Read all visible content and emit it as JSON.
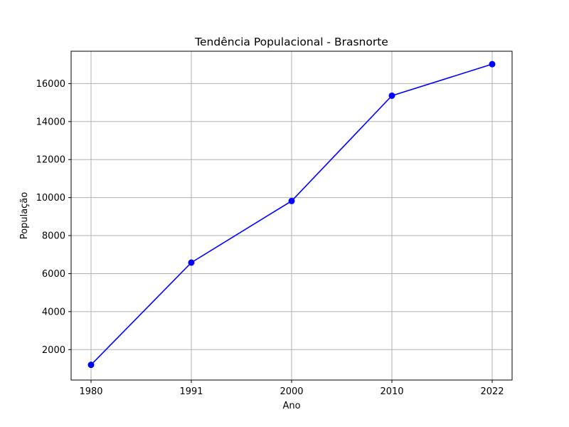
{
  "chart_data": {
    "type": "line",
    "title": "Tendência Populacional - Brasnorte",
    "xlabel": "Ano",
    "ylabel": "População",
    "categories": [
      "1980",
      "1991",
      "2000",
      "2010",
      "2022"
    ],
    "series": [
      {
        "values": [
          1200,
          6580,
          9820,
          15360,
          17020
        ],
        "color": "#0000ff",
        "marker": "circle"
      }
    ],
    "ylim": [
      400,
      17700
    ],
    "yticks": [
      2000,
      4000,
      6000,
      8000,
      10000,
      12000,
      14000,
      16000
    ],
    "grid": true,
    "legend": "none"
  }
}
